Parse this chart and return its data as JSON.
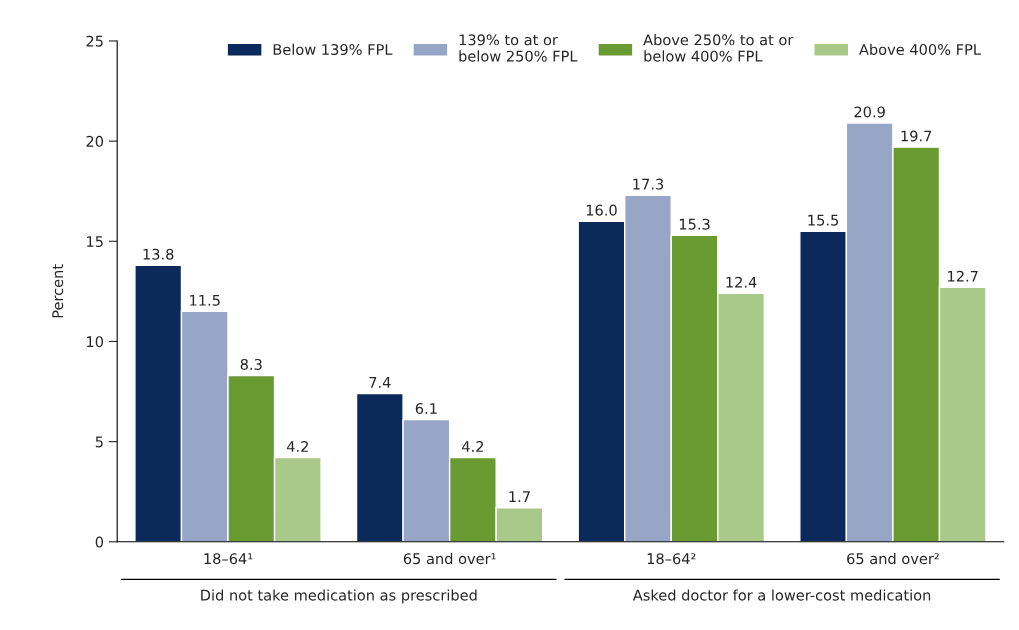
{
  "chart_data": {
    "type": "bar",
    "ylabel": "Percent",
    "categories": [
      "18–64¹",
      "65 and over¹",
      "18–64²",
      "65 and over²"
    ],
    "series": [
      {
        "name": "Below 139% FPL",
        "color": "#0b2a5b",
        "values": [
          13.8,
          7.4,
          16.0,
          15.5
        ]
      },
      {
        "name": "139% to at or\nbelow 250% FPL",
        "color": "#97a6c7",
        "values": [
          11.5,
          6.1,
          17.3,
          20.9
        ]
      },
      {
        "name": "Above 250% to at or\nbelow 400% FPL",
        "color": "#6a9a32",
        "values": [
          8.3,
          4.2,
          15.3,
          19.7
        ]
      },
      {
        "name": "Above 400% FPL",
        "color": "#a9c98a",
        "values": [
          4.2,
          1.7,
          12.4,
          12.7
        ]
      }
    ],
    "ylim": [
      0,
      25
    ],
    "yticks": [
      0,
      5,
      10,
      15,
      20,
      25
    ],
    "value_labels": [
      [
        "13.8",
        "7.4",
        "16.0",
        "15.5"
      ],
      [
        "11.5",
        "6.1",
        "17.3",
        "20.9"
      ],
      [
        "8.3",
        "4.2",
        "15.3",
        "19.7"
      ],
      [
        "4.2",
        "1.7",
        "12.4",
        "12.7"
      ]
    ],
    "annotations": [
      "Did not take medication as prescribed",
      "Asked doctor for a lower-cost medication"
    ],
    "legend": "top",
    "grid": false
  }
}
